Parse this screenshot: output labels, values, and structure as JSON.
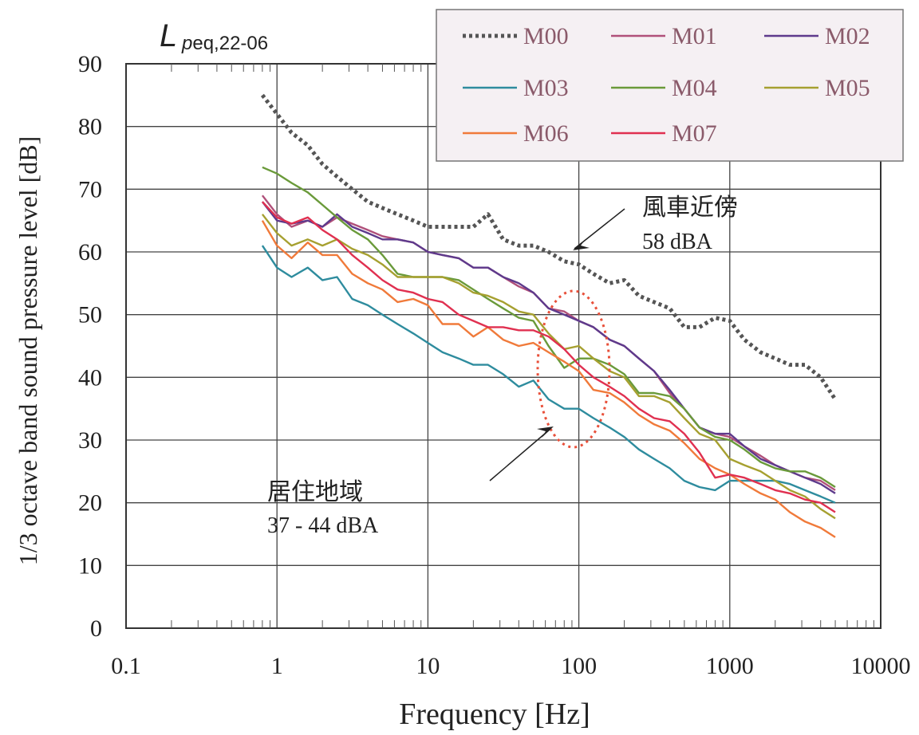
{
  "chart_data": {
    "type": "line",
    "title_main": "L",
    "title_sub": "peq,22-06",
    "xlabel": "Frequency [Hz]",
    "ylabel": "1/3 octave band sound pressure level [dB]",
    "xscale": "log",
    "xlim": [
      0.1,
      10000
    ],
    "ylim": [
      0,
      90
    ],
    "x_ticks": [
      0.1,
      1,
      10,
      100,
      1000,
      10000
    ],
    "x_tick_labels": [
      "0.1",
      "1",
      "10",
      "100",
      "1000",
      "10000"
    ],
    "y_ticks": [
      0,
      10,
      20,
      30,
      40,
      50,
      60,
      70,
      80,
      90
    ],
    "y_tick_labels": [
      "0",
      "10",
      "20",
      "30",
      "40",
      "50",
      "60",
      "70",
      "80",
      "90"
    ],
    "grid": true,
    "legend_position": "top-right",
    "x": [
      0.8,
      1,
      1.25,
      1.6,
      2,
      2.5,
      3.15,
      4,
      5,
      6.3,
      8,
      10,
      12.5,
      16,
      20,
      25,
      31.5,
      40,
      50,
      63,
      80,
      100,
      125,
      160,
      200,
      250,
      315,
      400,
      500,
      630,
      800,
      1000,
      1250,
      1600,
      2000,
      2500,
      3150,
      4000,
      5000
    ],
    "series": [
      {
        "name": "M00",
        "color": "#555555",
        "dashed": true,
        "values": [
          85,
          82,
          79,
          77,
          74,
          72,
          70,
          68,
          67,
          66,
          65,
          64,
          64,
          64,
          64,
          66,
          62,
          61,
          61,
          60,
          58.5,
          58,
          56.5,
          55,
          55.5,
          53,
          52,
          51,
          48,
          48,
          49.5,
          49,
          46,
          44,
          43,
          42,
          42,
          40,
          36.5
        ]
      },
      {
        "name": "M01",
        "color": "#b0507a",
        "dashed": false,
        "values": [
          69,
          66,
          64,
          65,
          64,
          65.5,
          64.5,
          63.5,
          62.5,
          62,
          61.5,
          60,
          59.5,
          59,
          57.5,
          57.5,
          56,
          54.5,
          53.5,
          51,
          50.5,
          49,
          48,
          46,
          45,
          43,
          41,
          37.5,
          35,
          32,
          31,
          30.5,
          29,
          27.5,
          26,
          25,
          24,
          23.5,
          22
        ]
      },
      {
        "name": "M02",
        "color": "#5e3a8c",
        "dashed": false,
        "values": [
          68,
          65,
          64.5,
          65,
          64,
          66,
          64,
          63,
          62,
          62,
          61.5,
          60,
          59.5,
          59,
          57.5,
          57.5,
          56,
          55,
          53.5,
          51,
          50,
          49,
          48,
          46,
          45,
          43,
          41,
          38,
          35,
          32,
          31,
          31,
          29,
          27,
          26,
          25,
          24,
          23,
          21.5
        ]
      },
      {
        "name": "M03",
        "color": "#2e8c9e",
        "dashed": false,
        "values": [
          61,
          57.5,
          56,
          57.5,
          55.5,
          56,
          52.5,
          51.5,
          50,
          48.5,
          47,
          45.5,
          44,
          43,
          42,
          42,
          40.5,
          38.5,
          39.5,
          36.5,
          35,
          35,
          33.5,
          32,
          30.5,
          28.5,
          27,
          25.5,
          23.5,
          22.5,
          22,
          23.5,
          23.5,
          23.5,
          23.5,
          23,
          22,
          21,
          20
        ]
      },
      {
        "name": "M04",
        "color": "#6a9a3a",
        "dashed": false,
        "values": [
          73.5,
          72.5,
          71,
          69.5,
          67.5,
          65.5,
          63.5,
          62,
          59.5,
          56.5,
          56,
          56,
          56,
          55.5,
          54,
          52.5,
          51,
          49.5,
          49,
          45,
          41.5,
          43,
          43,
          42,
          40.5,
          37.5,
          37.5,
          37,
          35,
          32,
          30.5,
          30,
          28.5,
          26.5,
          25.5,
          25,
          25,
          24,
          22.5
        ]
      },
      {
        "name": "M05",
        "color": "#a6a030",
        "dashed": false,
        "values": [
          66,
          63,
          61,
          62,
          61,
          62,
          60.5,
          59.5,
          58,
          56,
          56,
          56,
          56,
          55,
          53.5,
          53,
          52,
          50.5,
          50,
          47,
          44.5,
          45,
          43,
          41,
          40,
          37,
          37,
          36,
          33.5,
          31,
          30,
          27,
          26,
          25,
          23.5,
          22,
          21,
          19,
          17.5
        ]
      },
      {
        "name": "M06",
        "color": "#f07a3a",
        "dashed": false,
        "values": [
          65,
          61,
          59,
          61.5,
          59.5,
          59.5,
          56.5,
          55,
          54,
          52,
          52.5,
          51.5,
          48.5,
          48.5,
          46.5,
          48,
          46,
          45,
          45.5,
          44,
          42.5,
          41,
          38,
          37.5,
          36,
          34,
          32.5,
          31.5,
          29.5,
          27,
          25.5,
          24.5,
          23,
          21.5,
          20.5,
          18.5,
          17,
          16,
          14.5
        ]
      },
      {
        "name": "M07",
        "color": "#e03050",
        "dashed": false,
        "values": [
          68,
          65.5,
          64.5,
          65.5,
          63.5,
          62,
          59.5,
          57.5,
          55.5,
          54,
          53.5,
          52.5,
          52,
          50,
          49,
          48,
          48,
          47.5,
          47.5,
          46.5,
          44.5,
          42,
          40,
          38.5,
          37,
          35,
          33.5,
          33,
          31,
          28,
          24,
          24.5,
          24,
          23,
          22,
          21.5,
          20.5,
          20,
          18.5
        ]
      }
    ],
    "annotations": {
      "near_label": "風車近傍",
      "near_value": "58 dBA",
      "res_label": "居住地域",
      "res_value": "37 - 44 dBA"
    }
  }
}
